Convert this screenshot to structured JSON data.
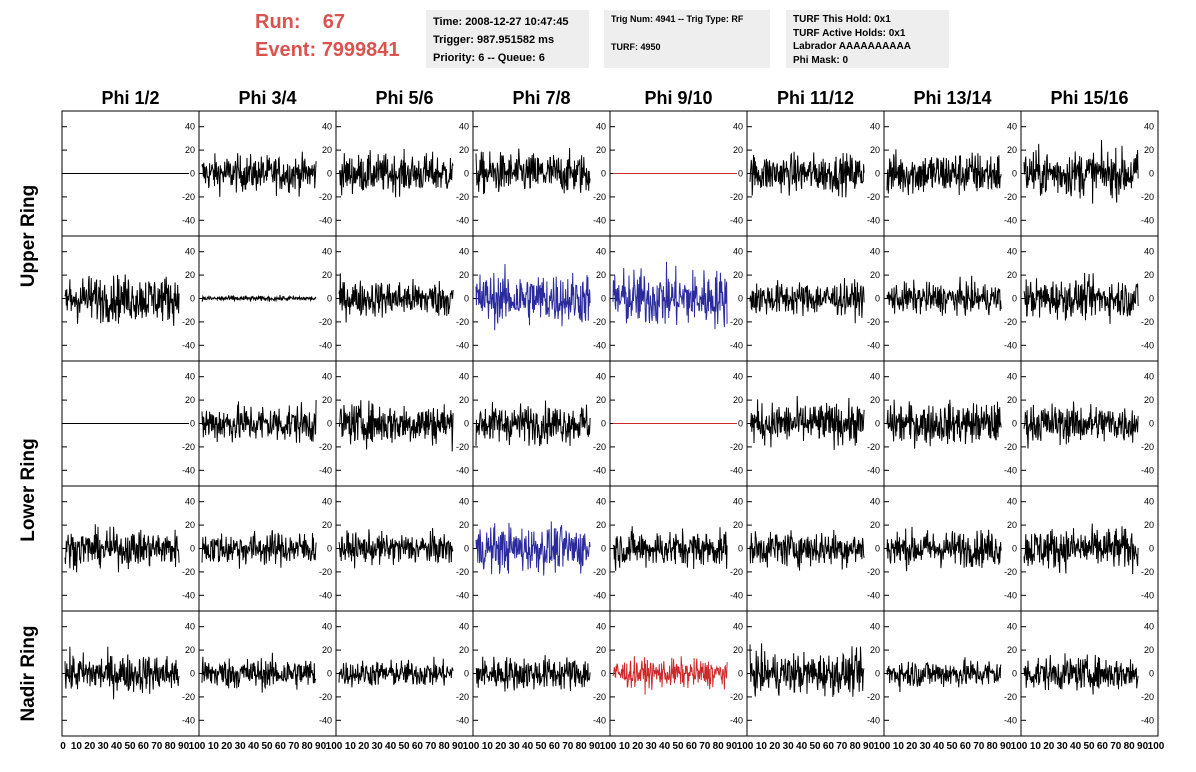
{
  "header": {
    "run_label": "Run:",
    "run_value": "67",
    "event_label": "Event:",
    "event_value": "7999841",
    "time_line": "Time: 2008-12-27 10:47:45",
    "trigger_line": "Trigger: 987.951582 ms",
    "priority_line": "Priority: 6 -- Queue: 6",
    "trig_line": "Trig Num: 4941 -- Trig Type: RF",
    "turf_line": "TURF: 4950",
    "turf_hold_line": "TURF This Hold: 0x1",
    "turf_active_line": "TURF Active Holds: 0x1",
    "labrador_line": "Labrador AAAAAAAAAA",
    "phi_mask_line": "Phi Mask: 0"
  },
  "chart_data": {
    "type": "line",
    "columns": [
      "Phi 1/2",
      "Phi 3/4",
      "Phi 5/6",
      "Phi 7/8",
      "Phi 9/10",
      "Phi 11/12",
      "Phi 13/14",
      "Phi 15/16"
    ],
    "rows": [
      "Upper Ring",
      "Upper Ring",
      "Lower Ring",
      "Lower Ring",
      "Nadir Ring"
    ],
    "row_labels": [
      "Upper Ring",
      "Lower Ring",
      "Nadir Ring"
    ],
    "xlim": [
      0,
      100
    ],
    "ylim": [
      -50,
      50
    ],
    "x_ticks": [
      0,
      10,
      20,
      30,
      40,
      50,
      60,
      70,
      80,
      90,
      100
    ],
    "y_ticks": [
      -40,
      -20,
      0,
      20,
      40
    ],
    "x_tick_labels_shown": "0 10 20 30 40 50 60 70 80 90 100",
    "colors": {
      "normal": "#000000",
      "highlight": "#2b2b9e",
      "flagged": "#cc2a2a"
    },
    "panels": [
      [
        {
          "c": "#000000",
          "a": 0
        },
        {
          "c": "#000000",
          "a": 14
        },
        {
          "c": "#000000",
          "a": 15
        },
        {
          "c": "#000000",
          "a": 16
        },
        {
          "c": "#cc2a2a",
          "a": 0
        },
        {
          "c": "#000000",
          "a": 15
        },
        {
          "c": "#000000",
          "a": 17
        },
        {
          "c": "#000000",
          "a": 18
        }
      ],
      [
        {
          "c": "#000000",
          "a": 18
        },
        {
          "c": "#000000",
          "a": 2
        },
        {
          "c": "#000000",
          "a": 14
        },
        {
          "c": "#2b2b9e",
          "a": 20
        },
        {
          "c": "#2b2b9e",
          "a": 22
        },
        {
          "c": "#000000",
          "a": 13
        },
        {
          "c": "#000000",
          "a": 12
        },
        {
          "c": "#000000",
          "a": 15
        }
      ],
      [
        {
          "c": "#000000",
          "a": 0
        },
        {
          "c": "#000000",
          "a": 15
        },
        {
          "c": "#000000",
          "a": 16
        },
        {
          "c": "#000000",
          "a": 15
        },
        {
          "c": "#cc2a2a",
          "a": 0
        },
        {
          "c": "#000000",
          "a": 16
        },
        {
          "c": "#000000",
          "a": 16
        },
        {
          "c": "#000000",
          "a": 15
        }
      ],
      [
        {
          "c": "#000000",
          "a": 14
        },
        {
          "c": "#000000",
          "a": 13
        },
        {
          "c": "#000000",
          "a": 12
        },
        {
          "c": "#2b2b9e",
          "a": 18
        },
        {
          "c": "#000000",
          "a": 14
        },
        {
          "c": "#000000",
          "a": 14
        },
        {
          "c": "#000000",
          "a": 14
        },
        {
          "c": "#000000",
          "a": 16
        }
      ],
      [
        {
          "c": "#000000",
          "a": 15
        },
        {
          "c": "#000000",
          "a": 12
        },
        {
          "c": "#000000",
          "a": 10
        },
        {
          "c": "#000000",
          "a": 13
        },
        {
          "c": "#cc2a2a",
          "a": 11
        },
        {
          "c": "#000000",
          "a": 16
        },
        {
          "c": "#000000",
          "a": 11
        },
        {
          "c": "#000000",
          "a": 13
        }
      ]
    ]
  }
}
